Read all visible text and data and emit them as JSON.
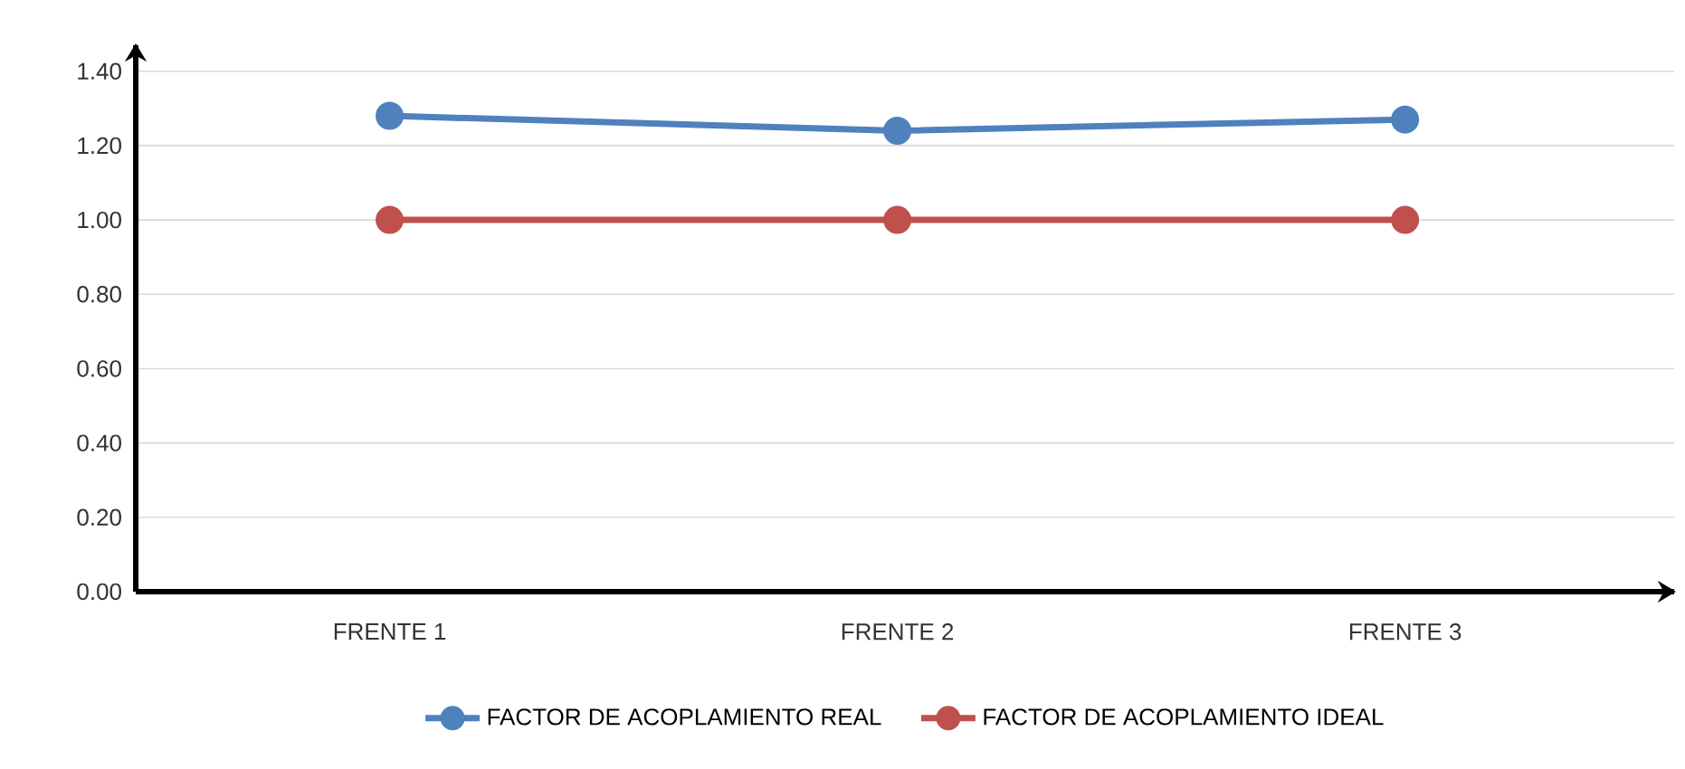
{
  "chart_data": {
    "type": "line",
    "categories": [
      "FRENTE 1",
      "FRENTE 2",
      "FRENTE 3"
    ],
    "series": [
      {
        "name": "FACTOR DE ACOPLAMIENTO REAL",
        "color": "#4f81bd",
        "values": [
          1.28,
          1.24,
          1.27
        ]
      },
      {
        "name": "FACTOR DE ACOPLAMIENTO IDEAL",
        "color": "#c0504d",
        "values": [
          1.0,
          1.0,
          1.0
        ]
      }
    ],
    "ylim": [
      0,
      1.4
    ],
    "yticks": [
      {
        "value": 0,
        "label": "0.00"
      },
      {
        "value": 0.2,
        "label": "0.20"
      },
      {
        "value": 0.4,
        "label": "0.40"
      },
      {
        "value": 0.6,
        "label": "0.60"
      },
      {
        "value": 0.8,
        "label": "0.80"
      },
      {
        "value": 1.0,
        "label": "1.00"
      },
      {
        "value": 1.2,
        "label": "1.20"
      },
      {
        "value": 1.4,
        "label": "1.40"
      }
    ],
    "grid": "y",
    "legend": "bottom",
    "marker": "circle",
    "line_style": "solid"
  }
}
